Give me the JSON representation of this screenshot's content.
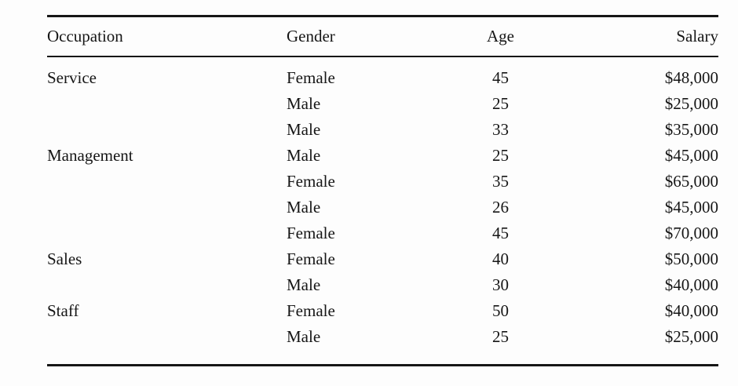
{
  "colors": {
    "text": "#161616",
    "rule": "#161616",
    "background": "#fdfdfd"
  },
  "table": {
    "headers": [
      "Occupation",
      "Gender",
      "Age",
      "Salary"
    ],
    "rows": [
      {
        "occupation": "Service",
        "gender": "Female",
        "age": "45",
        "salary": "$48,000"
      },
      {
        "occupation": "",
        "gender": "Male",
        "age": "25",
        "salary": "$25,000"
      },
      {
        "occupation": "",
        "gender": "Male",
        "age": "33",
        "salary": "$35,000"
      },
      {
        "occupation": "Management",
        "gender": "Male",
        "age": "25",
        "salary": "$45,000"
      },
      {
        "occupation": "",
        "gender": "Female",
        "age": "35",
        "salary": "$65,000"
      },
      {
        "occupation": "",
        "gender": "Male",
        "age": "26",
        "salary": "$45,000"
      },
      {
        "occupation": "",
        "gender": "Female",
        "age": "45",
        "salary": "$70,000"
      },
      {
        "occupation": "Sales",
        "gender": "Female",
        "age": "40",
        "salary": "$50,000"
      },
      {
        "occupation": "",
        "gender": "Male",
        "age": "30",
        "salary": "$40,000"
      },
      {
        "occupation": "Staff",
        "gender": "Female",
        "age": "50",
        "salary": "$40,000"
      },
      {
        "occupation": "",
        "gender": "Male",
        "age": "25",
        "salary": "$25,000"
      }
    ]
  }
}
